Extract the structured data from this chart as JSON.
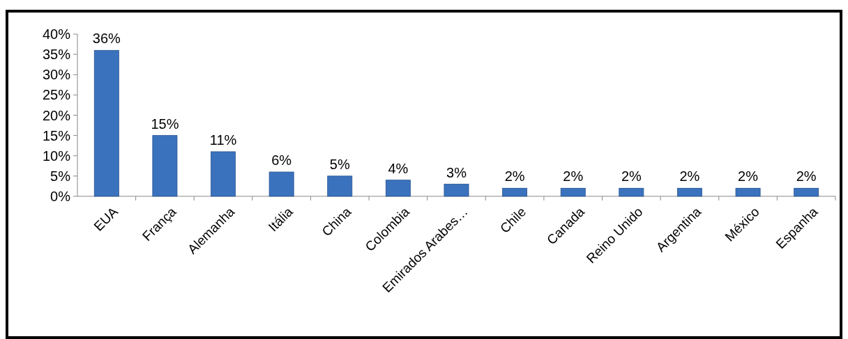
{
  "chart_data": {
    "type": "bar",
    "categories": [
      "EUA",
      "França",
      "Alemanha",
      "Itália",
      "China",
      "Colombia",
      "Emirados Arabes…",
      "Chile",
      "Canada",
      "Reino Unido",
      "Argentina",
      "México",
      "Espanha"
    ],
    "values": [
      36,
      15,
      11,
      6,
      5,
      4,
      3,
      2,
      2,
      2,
      2,
      2,
      2
    ],
    "value_labels": [
      "36%",
      "15%",
      "11%",
      "6%",
      "5%",
      "4%",
      "3%",
      "2%",
      "2%",
      "2%",
      "2%",
      "2%",
      "2%"
    ],
    "color": "#3a72bd",
    "ylim": [
      0,
      40
    ],
    "yticks": [
      {
        "value": 0,
        "label": "0%"
      },
      {
        "value": 5,
        "label": "5%"
      },
      {
        "value": 10,
        "label": "10%"
      },
      {
        "value": 15,
        "label": "15%"
      },
      {
        "value": 20,
        "label": "20%"
      },
      {
        "value": 25,
        "label": "25%"
      },
      {
        "value": 30,
        "label": "30%"
      },
      {
        "value": 35,
        "label": "35%"
      },
      {
        "value": 40,
        "label": "40%"
      }
    ],
    "grid": false
  }
}
